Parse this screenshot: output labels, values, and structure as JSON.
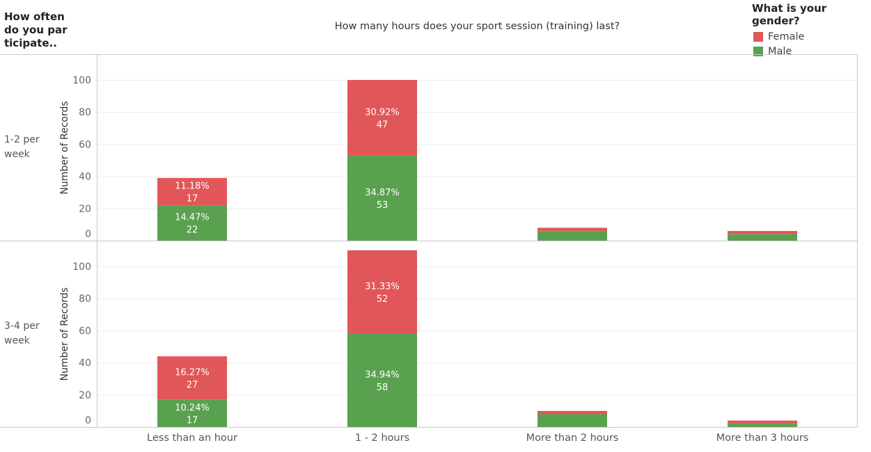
{
  "row_header": {
    "lines": [
      "How often",
      "do you par",
      "ticipate.."
    ]
  },
  "column_title": "How many hours does your sport session (training) last?",
  "legend": {
    "title": "What is your gender?",
    "items": [
      {
        "label": "Female",
        "color": "#e15759"
      },
      {
        "label": "Male",
        "color": "#59a14f"
      }
    ]
  },
  "chart_data": {
    "type": "bar",
    "stacked": true,
    "title": "How many hours does your sport session (training) last?",
    "xlabel": "",
    "ylabel": "Number of Records",
    "ylim": [
      0,
      110
    ],
    "yticks": [
      0,
      20,
      40,
      60,
      80,
      100
    ],
    "grid": true,
    "legend_position": "top-right",
    "categories": [
      "Less than an hour",
      "1 - 2 hours",
      "More than 2 hours",
      "More than 3 hours"
    ],
    "panels": [
      {
        "row_label": [
          "1-2 per",
          "week"
        ],
        "series": [
          {
            "name": "Male",
            "color": "#59a14f",
            "values": [
              22,
              53,
              6,
              4
            ],
            "labels": [
              [
                "14.47%",
                "22"
              ],
              [
                "34.87%",
                "53"
              ],
              null,
              null
            ]
          },
          {
            "name": "Female",
            "color": "#e15759",
            "values": [
              17,
              47,
              2,
              2
            ],
            "labels": [
              [
                "11.18%",
                "17"
              ],
              [
                "30.92%",
                "47"
              ],
              null,
              null
            ]
          }
        ]
      },
      {
        "row_label": [
          "3-4 per",
          "week"
        ],
        "series": [
          {
            "name": "Male",
            "color": "#59a14f",
            "values": [
              17,
              58,
              8,
              2
            ],
            "labels": [
              [
                "10.24%",
                "17"
              ],
              [
                "34.94%",
                "58"
              ],
              null,
              null
            ]
          },
          {
            "name": "Female",
            "color": "#e15759",
            "values": [
              27,
              52,
              2,
              2
            ],
            "labels": [
              [
                "16.27%",
                "27"
              ],
              [
                "31.33%",
                "52"
              ],
              null,
              null
            ]
          }
        ]
      }
    ]
  }
}
